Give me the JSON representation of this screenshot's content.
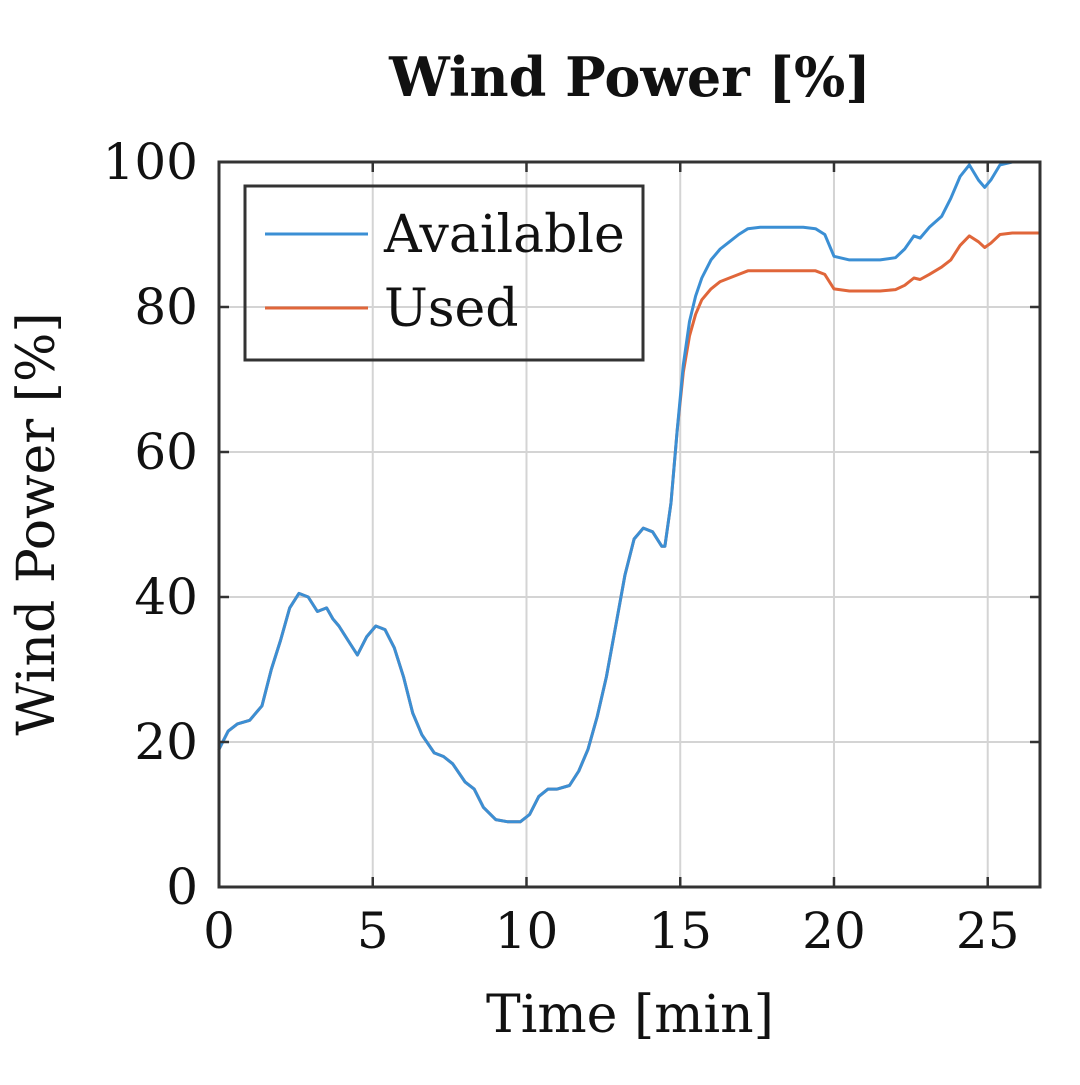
{
  "chart_data": {
    "type": "line",
    "title": "Wind Power [%]",
    "xlabel": "Time [min]",
    "ylabel": "Wind Power [%]",
    "xlim": [
      0,
      26.7
    ],
    "ylim": [
      0,
      100
    ],
    "xticks": [
      0,
      5,
      10,
      15,
      20,
      25
    ],
    "yticks": [
      0,
      20,
      40,
      60,
      80,
      100
    ],
    "grid": true,
    "legend_position": "top-left",
    "series": [
      {
        "name": "Available",
        "color": "#3b8fd4",
        "x": [
          0,
          0.3,
          0.6,
          1.0,
          1.4,
          1.7,
          2.0,
          2.3,
          2.6,
          2.9,
          3.2,
          3.5,
          3.7,
          3.9,
          4.2,
          4.5,
          4.8,
          5.1,
          5.4,
          5.7,
          6.0,
          6.3,
          6.6,
          7.0,
          7.3,
          7.6,
          8.0,
          8.3,
          8.6,
          9.0,
          9.4,
          9.8,
          10.1,
          10.4,
          10.7,
          11.0,
          11.4,
          11.7,
          12.0,
          12.3,
          12.6,
          12.9,
          13.2,
          13.5,
          13.8,
          14.1,
          14.4,
          14.5,
          14.7,
          14.9,
          15.1,
          15.3,
          15.5,
          15.7,
          16.0,
          16.3,
          16.6,
          16.9,
          17.2,
          17.6,
          18.0,
          18.5,
          19.0,
          19.4,
          19.7,
          20.0,
          20.5,
          21.0,
          21.5,
          22.0,
          22.3,
          22.6,
          22.8,
          23.1,
          23.5,
          23.8,
          24.1,
          24.4,
          24.7,
          24.9,
          25.1,
          25.4,
          25.8,
          26.2,
          26.7
        ],
        "y": [
          19,
          21.5,
          22.5,
          23,
          25,
          30,
          34,
          38.5,
          40.5,
          40,
          38,
          38.5,
          37,
          36,
          34,
          32,
          34.5,
          36,
          35.5,
          33,
          29,
          24,
          21,
          18.5,
          18,
          17,
          14.5,
          13.5,
          11,
          9.3,
          9,
          9,
          10,
          12.5,
          13.5,
          13.5,
          14,
          16,
          19,
          23.5,
          29,
          36,
          43,
          48,
          49.5,
          49,
          47,
          47,
          53,
          63,
          72,
          78,
          81.5,
          84,
          86.5,
          88,
          89,
          90,
          90.8,
          91,
          91,
          91,
          91,
          90.8,
          90,
          87,
          86.5,
          86.5,
          86.5,
          86.8,
          88,
          89.8,
          89.5,
          91,
          92.5,
          95,
          98,
          99.6,
          97.5,
          96.5,
          97.5,
          99.6,
          100,
          100,
          100
        ]
      },
      {
        "name": "Used",
        "color": "#e0663a",
        "x": [
          0,
          0.3,
          0.6,
          1.0,
          1.4,
          1.7,
          2.0,
          2.3,
          2.6,
          2.9,
          3.2,
          3.5,
          3.7,
          3.9,
          4.2,
          4.5,
          4.8,
          5.1,
          5.4,
          5.7,
          6.0,
          6.3,
          6.6,
          7.0,
          7.3,
          7.6,
          8.0,
          8.3,
          8.6,
          9.0,
          9.4,
          9.8,
          10.1,
          10.4,
          10.7,
          11.0,
          11.4,
          11.7,
          12.0,
          12.3,
          12.6,
          12.9,
          13.2,
          13.5,
          13.8,
          14.1,
          14.4,
          14.5,
          14.7,
          14.9,
          15.1,
          15.3,
          15.5,
          15.7,
          16.0,
          16.3,
          16.6,
          16.9,
          17.2,
          17.6,
          18.0,
          18.5,
          19.0,
          19.4,
          19.7,
          20.0,
          20.5,
          21.0,
          21.5,
          22.0,
          22.3,
          22.6,
          22.8,
          23.1,
          23.5,
          23.8,
          24.1,
          24.4,
          24.7,
          24.9,
          25.1,
          25.4,
          25.8,
          26.2,
          26.7
        ],
        "y": [
          19,
          21.5,
          22.5,
          23,
          25,
          30,
          34,
          38.5,
          40.5,
          40,
          38,
          38.5,
          37,
          36,
          34,
          32,
          34.5,
          36,
          35.5,
          33,
          29,
          24,
          21,
          18.5,
          18,
          17,
          14.5,
          13.5,
          11,
          9.3,
          9,
          9,
          10,
          12.5,
          13.5,
          13.5,
          14,
          16,
          19,
          23.5,
          29,
          36,
          43,
          48,
          49.5,
          49,
          47,
          47,
          53,
          63,
          71,
          76,
          79,
          81,
          82.5,
          83.5,
          84,
          84.5,
          85,
          85,
          85,
          85,
          85,
          85,
          84.5,
          82.5,
          82.2,
          82.2,
          82.2,
          82.4,
          83,
          84,
          83.8,
          84.5,
          85.5,
          86.5,
          88.5,
          89.8,
          89,
          88.2,
          88.8,
          90,
          90.2,
          90.2,
          90.2
        ]
      }
    ]
  }
}
